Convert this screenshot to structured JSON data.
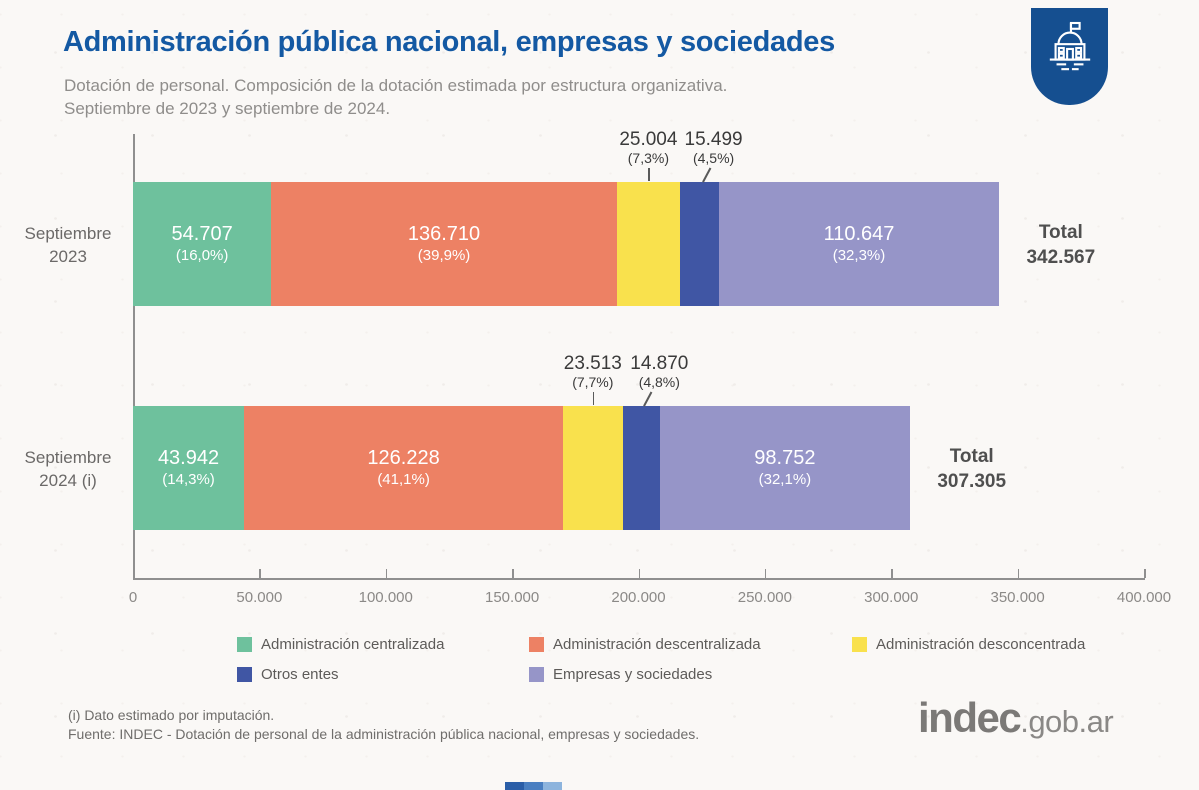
{
  "header": {
    "title": "Administración pública nacional, empresas y sociedades",
    "subtitle_line1": "Dotación de personal. Composición de la dotación estimada por estructura organizativa.",
    "subtitle_line2": "Septiembre de 2023 y septiembre de 2024."
  },
  "colors": {
    "title": "#1459a3",
    "badge": "#154f90",
    "green": "#6ec19d",
    "orange": "#ed8164",
    "yellow": "#f9e14d",
    "darkblue": "#4056a4",
    "purple": "#9695c8"
  },
  "chart_data": {
    "type": "bar",
    "orientation": "horizontal",
    "stacked": true,
    "title": "Administración pública nacional, empresas y sociedades",
    "subtitle": "Dotación de personal. Composición de la dotación estimada por estructura organizativa. Septiembre de 2023 y septiembre de 2024.",
    "categories": [
      "Septiembre 2023",
      "Septiembre 2024 (i)"
    ],
    "series": [
      {
        "name": "Administración centralizada",
        "color": "#6ec19d",
        "values": [
          54707,
          43942
        ],
        "pct": [
          "16,0%",
          "14,3%"
        ]
      },
      {
        "name": "Administración descentralizada",
        "color": "#ed8164",
        "values": [
          136710,
          126228
        ],
        "pct": [
          "39,9%",
          "41,1%"
        ]
      },
      {
        "name": "Administración desconcentrada",
        "color": "#f9e14d",
        "values": [
          25004,
          23513
        ],
        "pct": [
          "7,3%",
          "7,7%"
        ]
      },
      {
        "name": "Otros entes",
        "color": "#4056a4",
        "values": [
          15499,
          14870
        ],
        "pct": [
          "4,5%",
          "4,8%"
        ]
      },
      {
        "name": "Empresas y sociedades",
        "color": "#9695c8",
        "values": [
          110647,
          98752
        ],
        "pct": [
          "32,3%",
          "32,1%"
        ]
      }
    ],
    "totals": [
      342567,
      307305
    ],
    "x_axis": {
      "min": 0,
      "max": 400000,
      "tick_interval": 50000,
      "tick_labels": [
        "0",
        "50.000",
        "100.000",
        "150.000",
        "200.000",
        "250.000",
        "300.000",
        "350.000",
        "400.000"
      ]
    },
    "legend_position": "bottom",
    "grid": false
  },
  "bars": [
    {
      "category": [
        "Septiembre",
        "2023"
      ],
      "total_label": "Total",
      "total_value": "342.567",
      "segments": [
        {
          "series": "Administración centralizada",
          "value": 54707,
          "label": "54.707",
          "pct": "(16,0%)",
          "label_pos": "inside",
          "color": "#6ec19d",
          "callout_offset": 0
        },
        {
          "series": "Administración descentralizada",
          "value": 136710,
          "label": "136.710",
          "pct": "(39,9%)",
          "label_pos": "inside",
          "color": "#ed8164",
          "callout_offset": 0
        },
        {
          "series": "Administración desconcentrada",
          "value": 25004,
          "label": "25.004",
          "pct": "(7,3%)",
          "label_pos": "above",
          "color": "#f9e14d",
          "callout_offset": 0
        },
        {
          "series": "Otros entes",
          "value": 15499,
          "label": "15.499",
          "pct": "(4,5%)",
          "label_pos": "above",
          "color": "#4056a4",
          "callout_offset": 14
        },
        {
          "series": "Empresas y sociedades",
          "value": 110647,
          "label": "110.647",
          "pct": "(32,3%)",
          "label_pos": "inside",
          "color": "#9695c8",
          "callout_offset": 0
        }
      ]
    },
    {
      "category": [
        "Septiembre",
        "2024 (i)"
      ],
      "total_label": "Total",
      "total_value": "307.305",
      "segments": [
        {
          "series": "Administración centralizada",
          "value": 43942,
          "label": "43.942",
          "pct": "(14,3%)",
          "label_pos": "inside",
          "color": "#6ec19d",
          "callout_offset": 0
        },
        {
          "series": "Administración descentralizada",
          "value": 126228,
          "label": "126.228",
          "pct": "(41,1%)",
          "label_pos": "inside",
          "color": "#ed8164",
          "callout_offset": 0
        },
        {
          "series": "Administración desconcentrada",
          "value": 23513,
          "label": "23.513",
          "pct": "(7,7%)",
          "label_pos": "above",
          "color": "#f9e14d",
          "callout_offset": 0
        },
        {
          "series": "Otros entes",
          "value": 14870,
          "label": "14.870",
          "pct": "(4,8%)",
          "label_pos": "above",
          "color": "#4056a4",
          "callout_offset": 18
        },
        {
          "series": "Empresas y sociedades",
          "value": 98752,
          "label": "98.752",
          "pct": "(32,1%)",
          "label_pos": "inside",
          "color": "#9695c8",
          "callout_offset": 0
        }
      ]
    }
  ],
  "legend": {
    "items": [
      {
        "label": "Administración centralizada",
        "color": "#6ec19d"
      },
      {
        "label": "Administración descentralizada",
        "color": "#ed8164"
      },
      {
        "label": "Administración desconcentrada",
        "color": "#f9e14d"
      },
      {
        "label": "Otros entes",
        "color": "#4056a4"
      },
      {
        "label": "Empresas y sociedades",
        "color": "#9695c8"
      }
    ]
  },
  "footnotes": [
    "(i) Dato estimado por imputación.",
    "Fuente: INDEC - Dotación de personal de la administración pública nacional, empresas y sociedades."
  ],
  "brand": {
    "bold": "indec",
    "suffix": ".gob.ar"
  },
  "icons": {
    "badge": "government-building-icon"
  }
}
